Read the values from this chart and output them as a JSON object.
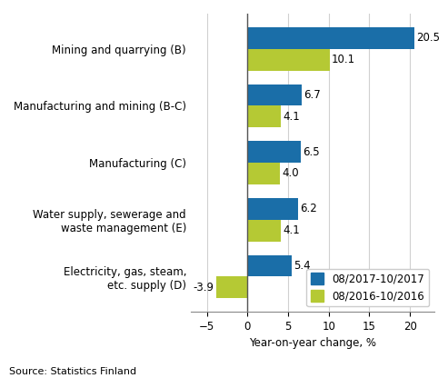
{
  "categories": [
    "Mining and quarrying (B)",
    "Manufacturing and mining (B-C)",
    "Manufacturing (C)",
    "Water supply, sewerage and\nwaste management (E)",
    "Electricity, gas, steam,\netc. supply (D)"
  ],
  "series_2017": [
    20.5,
    6.7,
    6.5,
    6.2,
    5.4
  ],
  "series_2016": [
    10.1,
    4.1,
    4.0,
    4.1,
    -3.9
  ],
  "color_2017": "#1a6ea8",
  "color_2016": "#b5c934",
  "legend_2017": "08/2017-10/2017",
  "legend_2016": "08/2016-10/2016",
  "xlabel": "Year-on-year change, %",
  "source": "Source: Statistics Finland",
  "xlim": [
    -7,
    23
  ],
  "xticks": [
    -5,
    0,
    5,
    10,
    15,
    20
  ],
  "bar_height": 0.38,
  "label_fontsize": 8.5,
  "tick_fontsize": 8.5,
  "source_fontsize": 8,
  "background_color": "#ffffff"
}
